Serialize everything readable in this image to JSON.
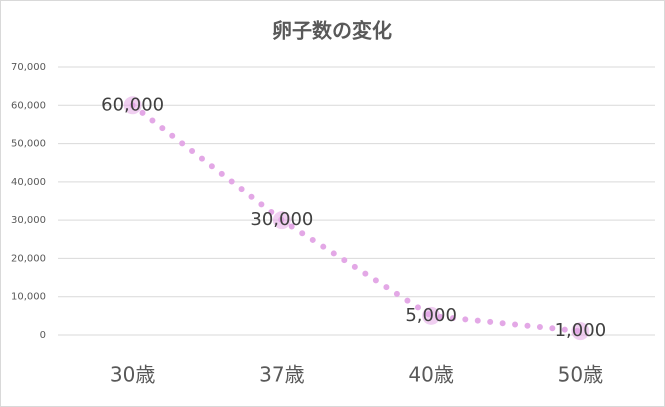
{
  "chart_data": {
    "type": "line",
    "title": "卵子数の変化",
    "categories": [
      "30歳",
      "37歳",
      "40歳",
      "50歳"
    ],
    "series": [
      {
        "name": "卵子数",
        "color": "#e3a8e6",
        "values": [
          60000,
          30000,
          5000,
          1000
        ],
        "value_labels": [
          "60,000",
          "30,000",
          "5,000",
          "1,000"
        ]
      }
    ],
    "ylim": [
      0,
      70000
    ],
    "yticks": [
      0,
      {
        "value": 10000,
        "label": "10,000"
      },
      {
        "value": 20000,
        "label": "20,000"
      },
      {
        "value": 30000,
        "label": "30,000"
      },
      {
        "value": 40000,
        "label": "40,000"
      },
      {
        "value": 50000,
        "label": "50,000"
      },
      {
        "value": 60000,
        "label": "60,000"
      },
      {
        "value": 70000,
        "label": "70,000"
      }
    ],
    "grid": true
  }
}
